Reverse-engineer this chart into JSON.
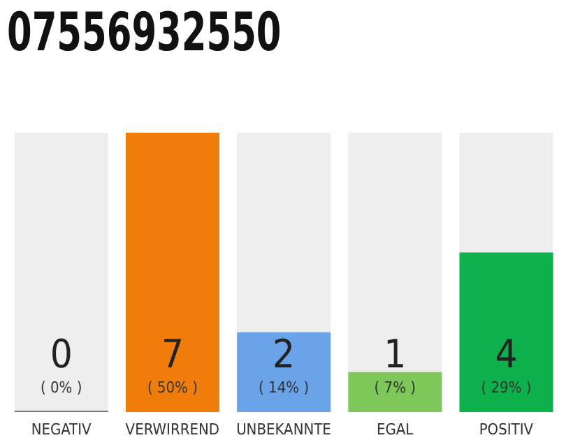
{
  "chart_data": {
    "type": "bar",
    "title": "07556932550",
    "categories": [
      "NEGATIV",
      "VERWIRREND",
      "UNBEKANNTE",
      "EGAL",
      "POSITIV"
    ],
    "values": [
      0,
      7,
      2,
      1,
      4
    ],
    "colors": [
      "#777777",
      "#f07d0a",
      "#6aa3e8",
      "#7ec85a",
      "#0db14b"
    ],
    "value_labels": [
      "0\n( 0% )",
      "7\n( 50% )",
      "2\n( 14% )",
      "1\n( 7% )",
      "4\n( 29% )"
    ],
    "grid": false,
    "legend": false
  }
}
